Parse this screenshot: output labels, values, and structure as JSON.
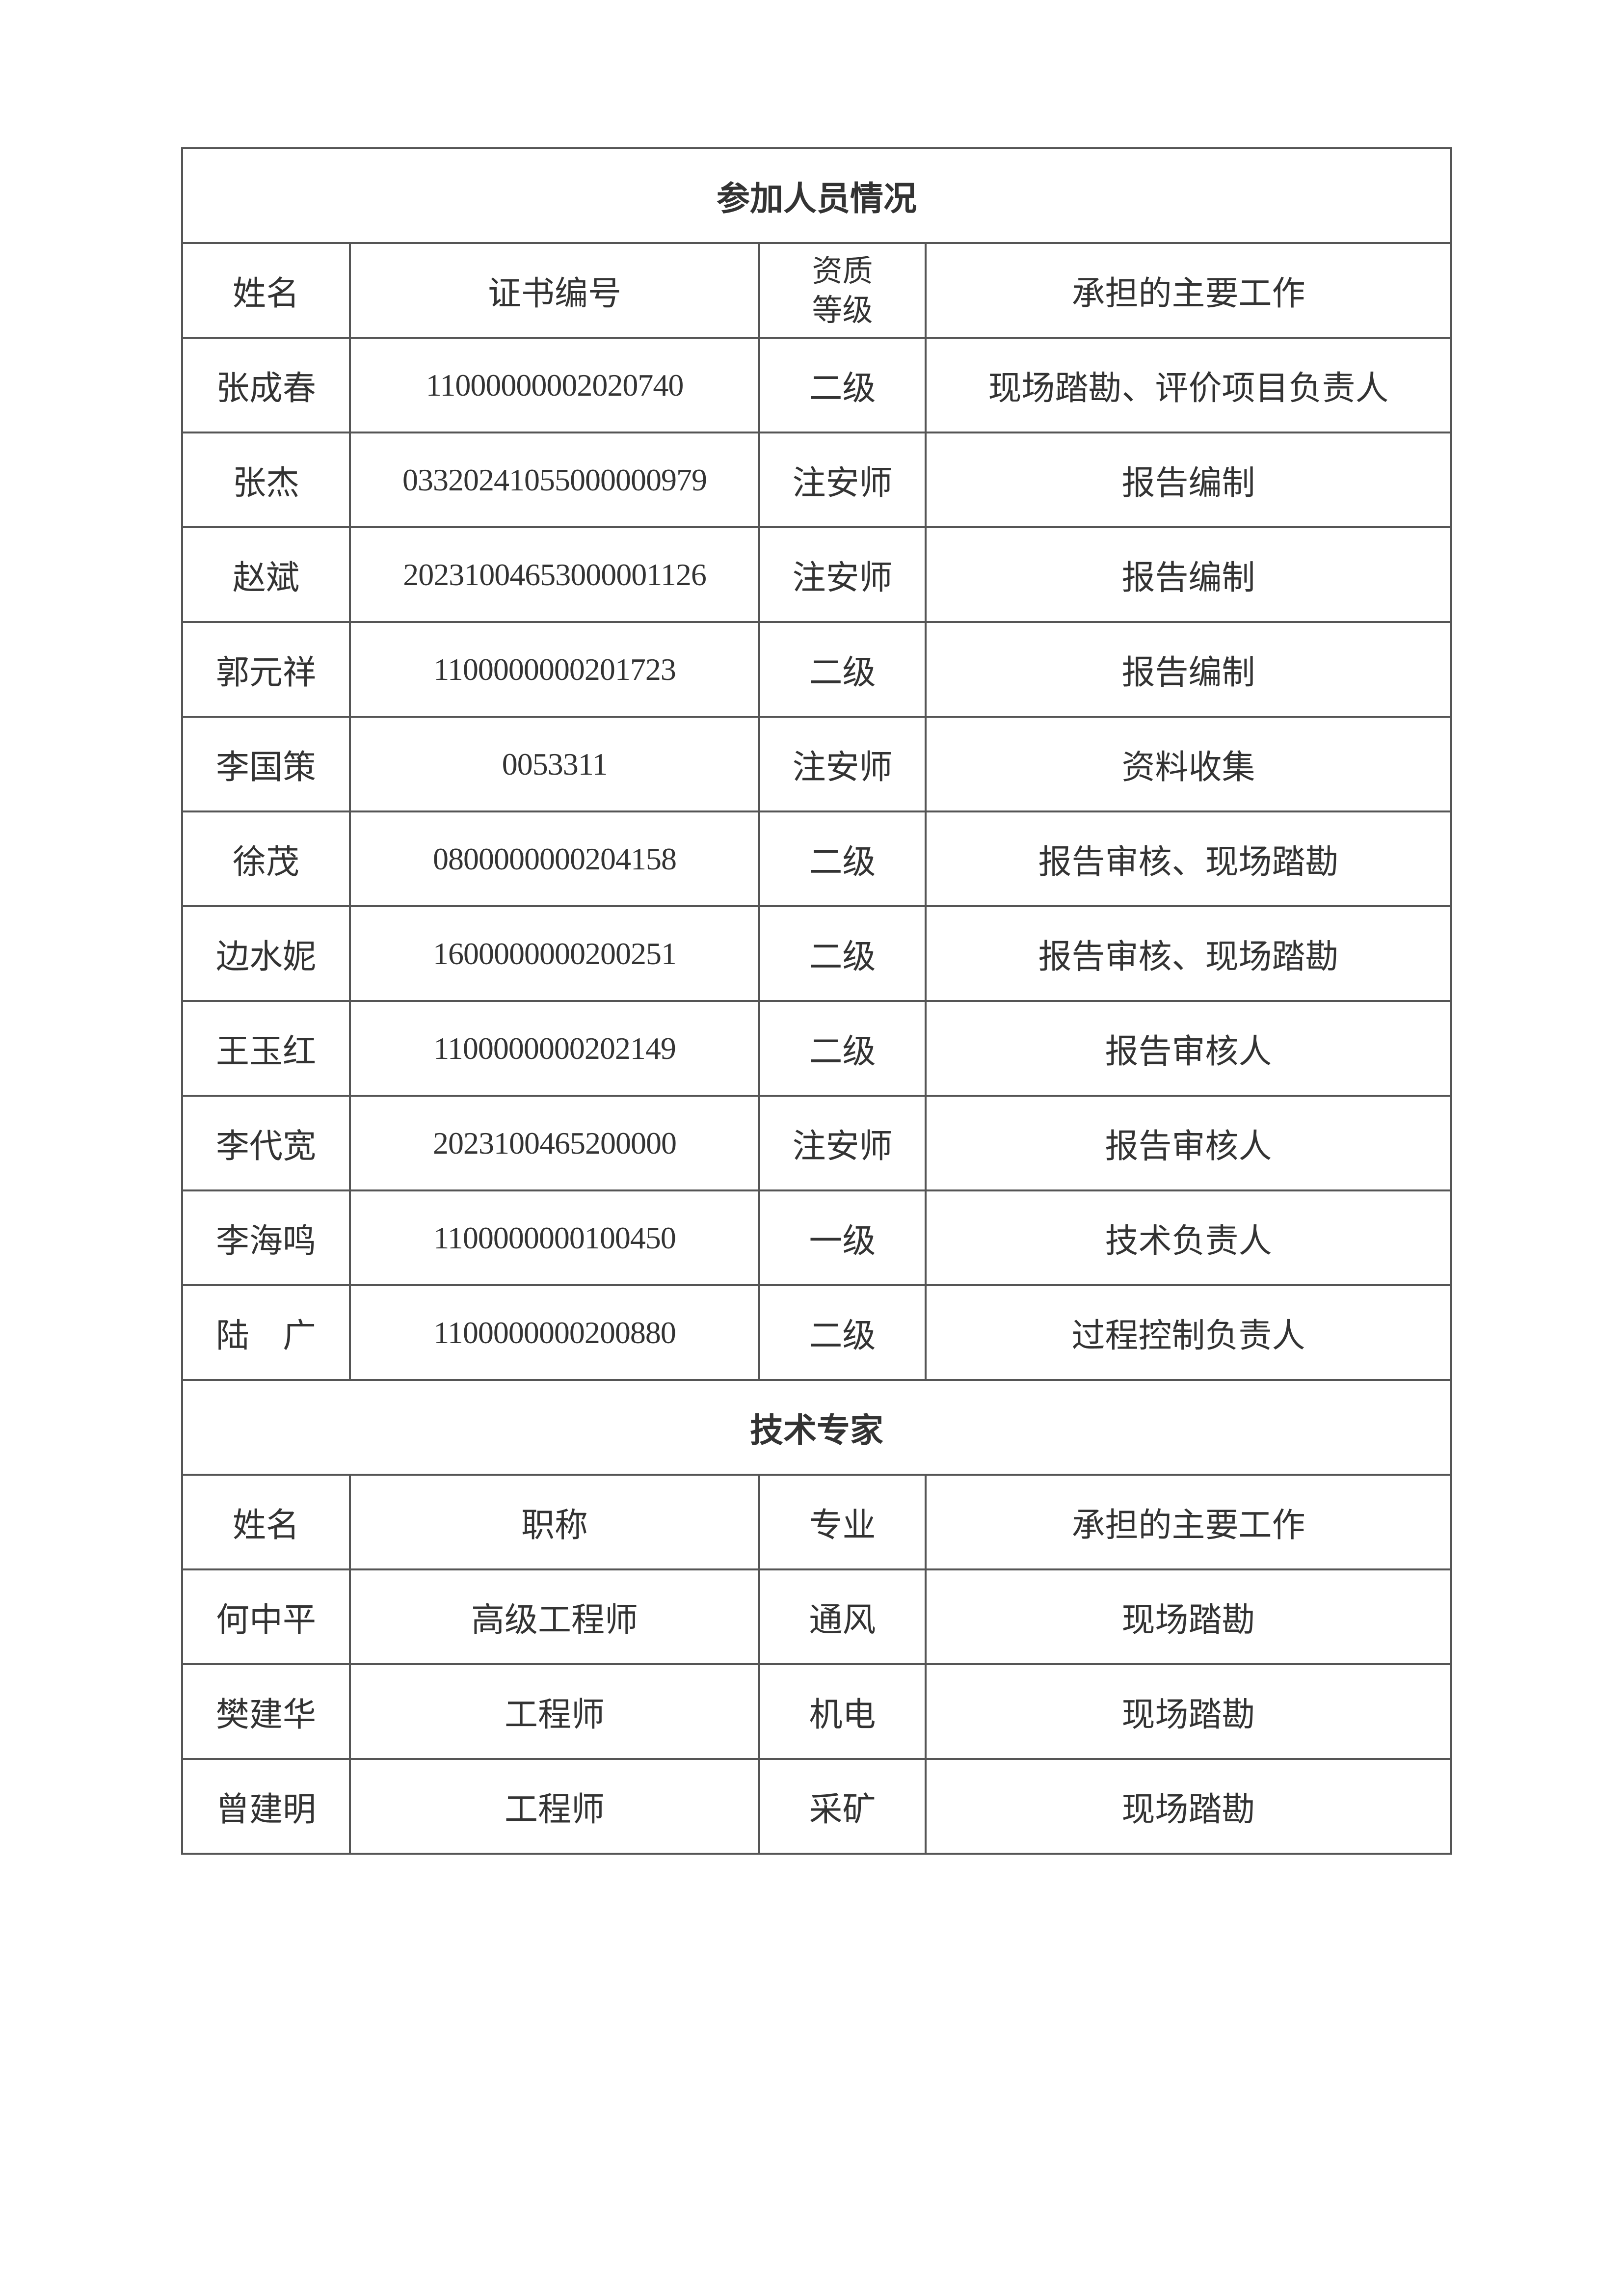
{
  "personnel": {
    "title": "参加人员情况",
    "headers": [
      "姓名",
      "证书编号",
      "资质等级",
      "承担的主要工作"
    ],
    "header_grade_lines": [
      "资质",
      "等级"
    ],
    "rows": [
      {
        "name": "张成春",
        "cert": "11000000002020740",
        "grade": "二级",
        "work": "现场踏勘、评价项目负责人"
      },
      {
        "name": "张杰",
        "cert": "03320241055000000979",
        "grade": "注安师",
        "work": "报告编制"
      },
      {
        "name": "赵斌",
        "cert": "20231004653000001126",
        "grade": "注安师",
        "work": "报告编制"
      },
      {
        "name": "郭元祥",
        "cert": "1100000000201723",
        "grade": "二级",
        "work": "报告编制"
      },
      {
        "name": "李国策",
        "cert": "0053311",
        "grade": "注安师",
        "work": "资料收集"
      },
      {
        "name": "徐茂",
        "cert": "0800000000204158",
        "grade": "二级",
        "work": "报告审核、现场踏勘"
      },
      {
        "name": "边水妮",
        "cert": "1600000000200251",
        "grade": "二级",
        "work": "报告审核、现场踏勘"
      },
      {
        "name": "王玉红",
        "cert": "1100000000202149",
        "grade": "二级",
        "work": "报告审核人"
      },
      {
        "name": "李代宽",
        "cert": "2023100465200000",
        "grade": "注安师",
        "work": "报告审核人"
      },
      {
        "name": "李海鸣",
        "cert": "1100000000100450",
        "grade": "一级",
        "work": "技术负责人"
      },
      {
        "name": "陆　广",
        "cert": "1100000000200880",
        "grade": "二级",
        "work": "过程控制负责人"
      }
    ]
  },
  "experts": {
    "title": "技术专家",
    "headers": [
      "姓名",
      "职称",
      "专业",
      "承担的主要工作"
    ],
    "rows": [
      {
        "name": "何中平",
        "title": "高级工程师",
        "major": "通风",
        "work": "现场踏勘"
      },
      {
        "name": "樊建华",
        "title": "工程师",
        "major": "机电",
        "work": "现场踏勘"
      },
      {
        "name": "曾建明",
        "title": "工程师",
        "major": "采矿",
        "work": "现场踏勘"
      }
    ]
  }
}
